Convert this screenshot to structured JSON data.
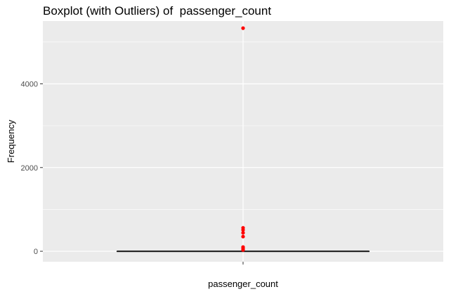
{
  "chart_data": {
    "type": "boxplot",
    "title": "Boxplot (with Outliers) of  passenger_count",
    "xlabel": "passenger_count",
    "ylabel": "Frequency",
    "categories": [
      "passenger_count"
    ],
    "ylim": [
      -250,
      5500
    ],
    "y_ticks": [
      0,
      2000,
      4000
    ],
    "box": {
      "min": 0,
      "q1": 0,
      "median": 0,
      "q3": 0,
      "max": 0
    },
    "outliers": [
      5330,
      560,
      510,
      440,
      350,
      100,
      60,
      30
    ],
    "grid": true,
    "colors": {
      "panel": "#ebebeb",
      "grid": "#ffffff",
      "outlier": "#ff0000",
      "box": "#1a1a1a"
    }
  }
}
